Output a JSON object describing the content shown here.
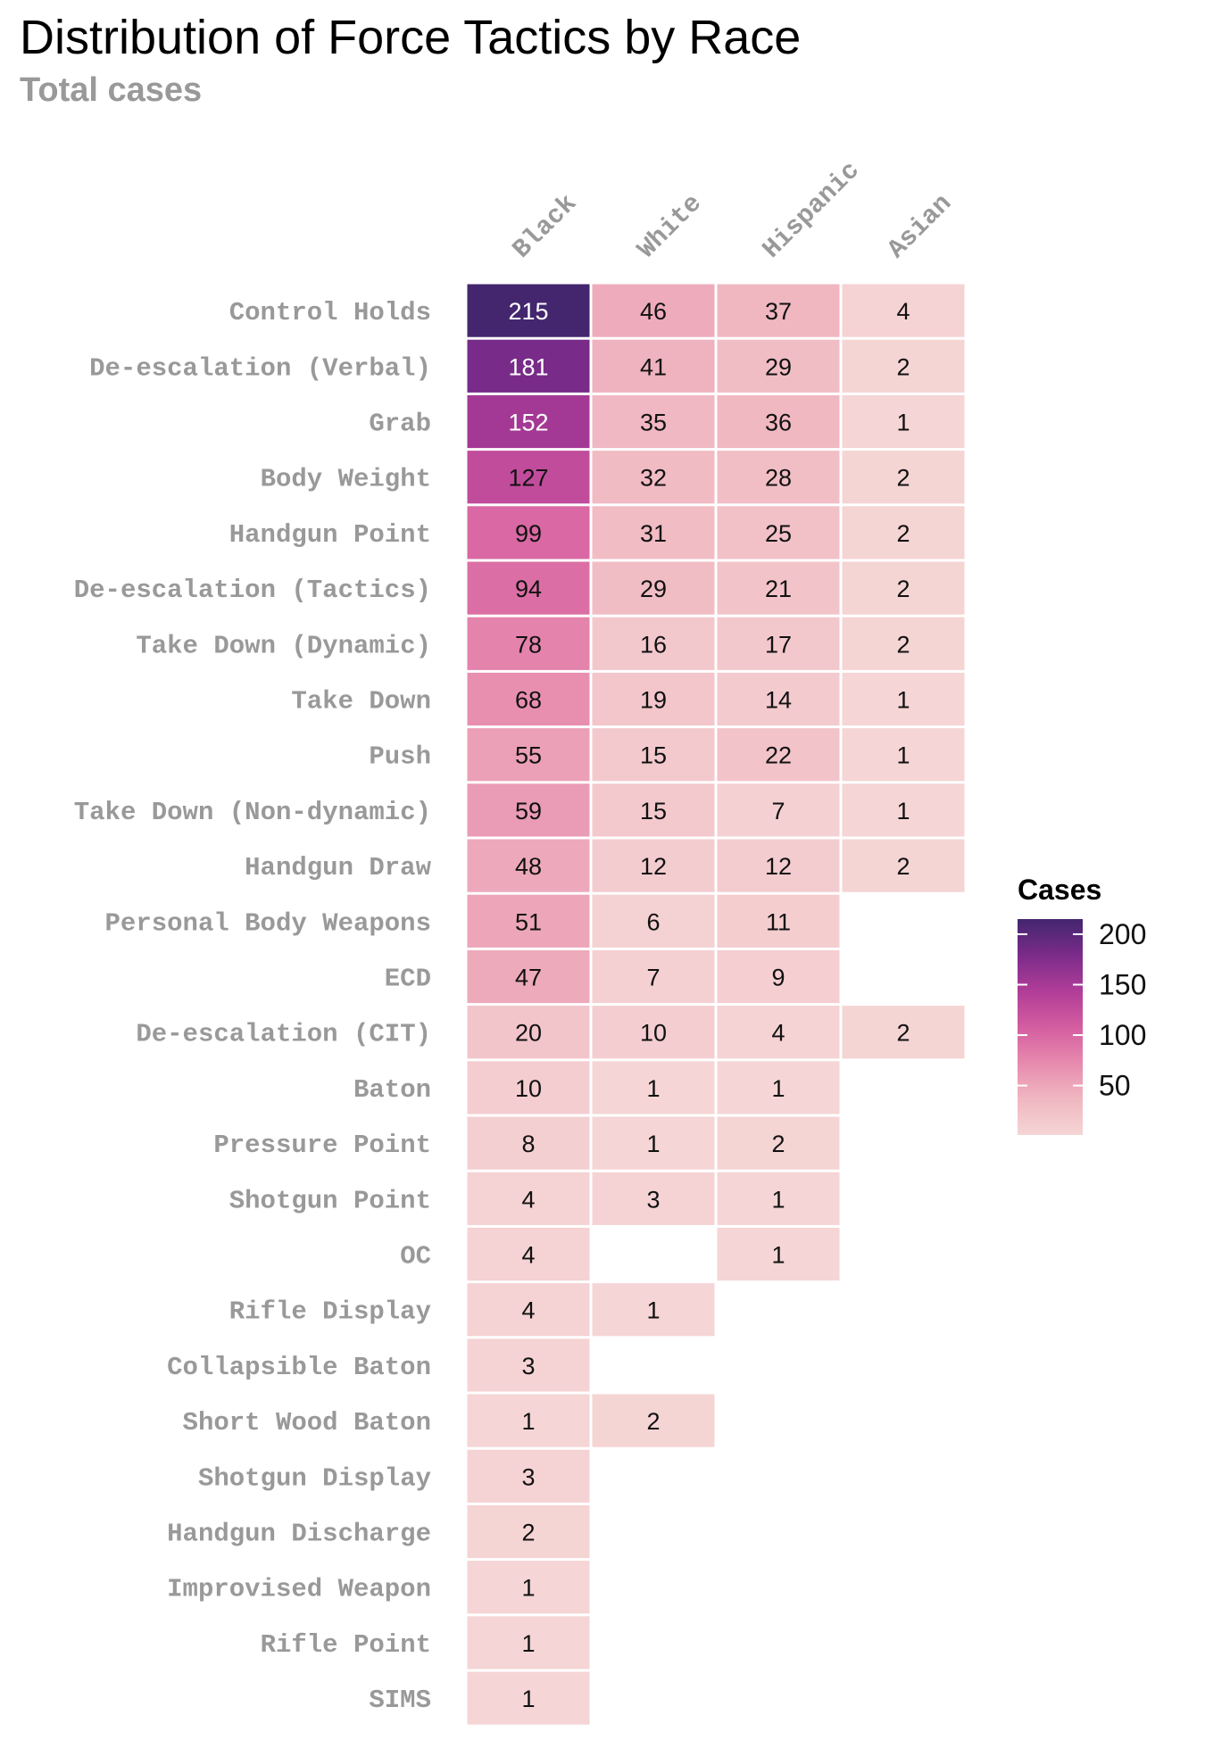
{
  "chart_data": {
    "type": "heatmap",
    "title": "Distribution of Force Tactics by Race",
    "subtitle": "Total cases",
    "columns": [
      "Black",
      "White",
      "Hispanic",
      "Asian"
    ],
    "rows": [
      {
        "label": "Control Holds",
        "values": [
          215,
          46,
          37,
          4
        ]
      },
      {
        "label": "De-escalation (Verbal)",
        "values": [
          181,
          41,
          29,
          2
        ]
      },
      {
        "label": "Grab",
        "values": [
          152,
          35,
          36,
          1
        ]
      },
      {
        "label": "Body Weight",
        "values": [
          127,
          32,
          28,
          2
        ]
      },
      {
        "label": "Handgun Point",
        "values": [
          99,
          31,
          25,
          2
        ]
      },
      {
        "label": "De-escalation (Tactics)",
        "values": [
          94,
          29,
          21,
          2
        ]
      },
      {
        "label": "Take Down (Dynamic)",
        "values": [
          78,
          16,
          17,
          2
        ]
      },
      {
        "label": "Take Down",
        "values": [
          68,
          19,
          14,
          1
        ]
      },
      {
        "label": "Push",
        "values": [
          55,
          15,
          22,
          1
        ]
      },
      {
        "label": "Take Down (Non-dynamic)",
        "values": [
          59,
          15,
          7,
          1
        ]
      },
      {
        "label": "Handgun Draw",
        "values": [
          48,
          12,
          12,
          2
        ]
      },
      {
        "label": "Personal Body Weapons",
        "values": [
          51,
          6,
          11,
          null
        ]
      },
      {
        "label": "ECD",
        "values": [
          47,
          7,
          9,
          null
        ]
      },
      {
        "label": "De-escalation (CIT)",
        "values": [
          20,
          10,
          4,
          2
        ]
      },
      {
        "label": "Baton",
        "values": [
          10,
          1,
          1,
          null
        ]
      },
      {
        "label": "Pressure Point",
        "values": [
          8,
          1,
          2,
          null
        ]
      },
      {
        "label": "Shotgun Point",
        "values": [
          4,
          3,
          1,
          null
        ]
      },
      {
        "label": "OC",
        "values": [
          4,
          null,
          1,
          null
        ]
      },
      {
        "label": "Rifle Display",
        "values": [
          4,
          1,
          null,
          null
        ]
      },
      {
        "label": "Collapsible Baton",
        "values": [
          3,
          null,
          null,
          null
        ]
      },
      {
        "label": "Short Wood Baton",
        "values": [
          1,
          2,
          null,
          null
        ]
      },
      {
        "label": "Shotgun Display",
        "values": [
          3,
          null,
          null,
          null
        ]
      },
      {
        "label": "Handgun Discharge",
        "values": [
          2,
          null,
          null,
          null
        ]
      },
      {
        "label": "Improvised Weapon",
        "values": [
          1,
          null,
          null,
          null
        ]
      },
      {
        "label": "Rifle Point",
        "values": [
          1,
          null,
          null,
          null
        ]
      },
      {
        "label": "SIMS",
        "values": [
          1,
          null,
          null,
          null
        ]
      }
    ],
    "legend": {
      "title": "Cases",
      "ticks": [
        50,
        100,
        150,
        200
      ],
      "position": "right"
    },
    "color_scale": {
      "min": 1,
      "max": 215,
      "stops": [
        "#f5d5d5",
        "#f0b7c1",
        "#e78aae",
        "#d45da0",
        "#b03d98",
        "#7b2b8a",
        "#43266e"
      ]
    },
    "grid": false
  }
}
